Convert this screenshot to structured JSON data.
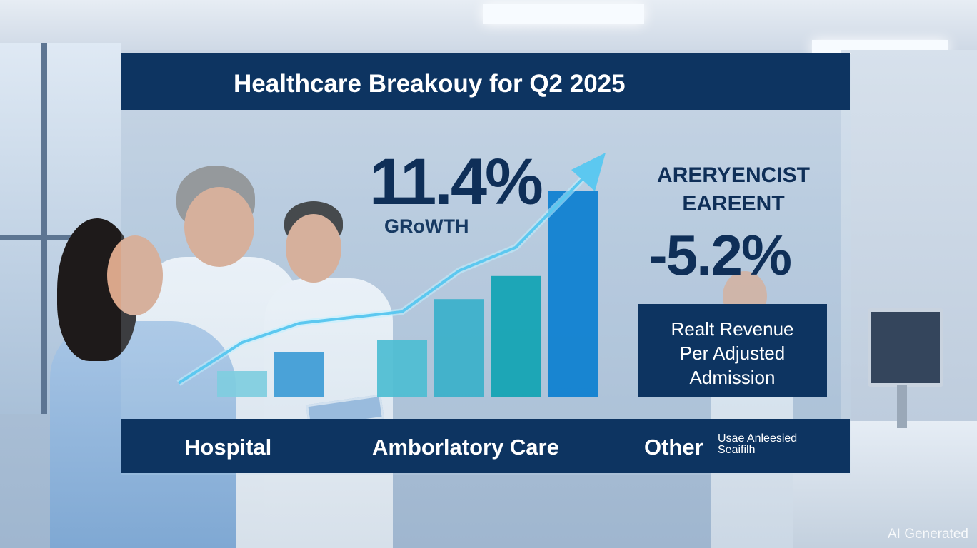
{
  "header": {
    "title": "Healthcare Breakouy for Q2 2025"
  },
  "kpi_left": {
    "value": "11.4%",
    "label": "GRoWTH"
  },
  "kpi_right": {
    "title_line1": "ARERYENCIST",
    "title_line2": "EAREENT",
    "value": "-5.2%"
  },
  "info_box": {
    "line1": "Realt Revenue",
    "line2": "Per Adjusted",
    "line3": "Admission"
  },
  "categories_bar": {
    "hospital": "Hospital",
    "ambulatory": "Amborlatory Care",
    "other": "Other",
    "other_note_line1": "Usae Anleesied",
    "other_note_line2": "Seaifilh"
  },
  "watermark": "AI Generated",
  "colors": {
    "navy": "#0d3461",
    "text_dark": "#0f2f58",
    "arrow": "#5cc8f0"
  },
  "chart_data": {
    "type": "bar",
    "title": "Healthcare Breakouy for Q2 2025",
    "values": [
      1.0,
      1.75,
      2.2,
      3.8,
      4.7,
      8.0
    ],
    "colors": [
      "#7fcde0",
      "#3d9bd6",
      "#4dbdd3",
      "#3ab0ca",
      "#10a3b3",
      "#0b7fd0"
    ],
    "trend": {
      "type": "line",
      "arrow": true
    },
    "ylim": [
      0,
      8.5
    ],
    "grid": false,
    "legend": "none"
  }
}
